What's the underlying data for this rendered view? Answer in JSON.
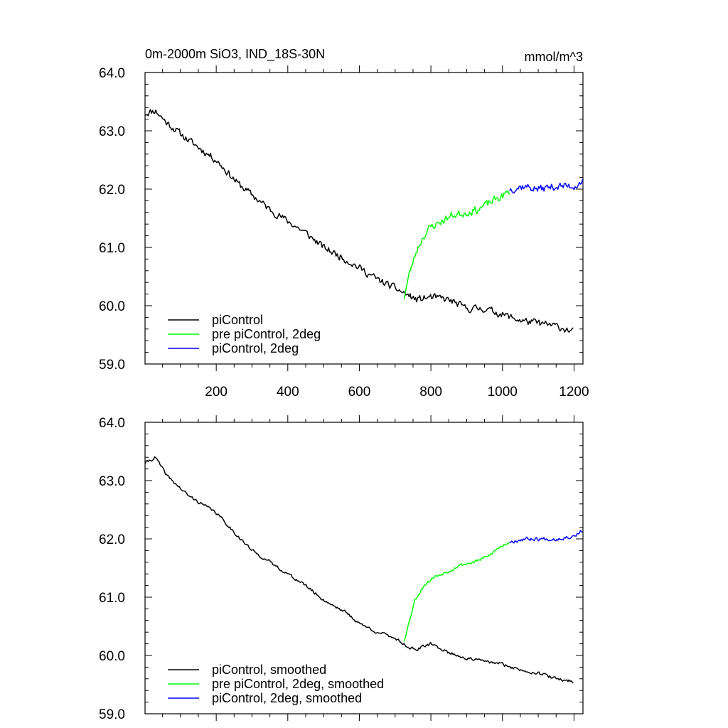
{
  "title_left": "0m-2000m SiO3, IND_18S-30N",
  "title_right": "mmol/m^3",
  "chart_data": [
    {
      "type": "line",
      "title": "0m-2000m SiO3, IND_18S-30N",
      "units": "mmol/m^3",
      "xlim": [
        1,
        1225
      ],
      "ylim": [
        59.0,
        64.0
      ],
      "x_ticks": [
        200,
        400,
        600,
        800,
        1000,
        1200
      ],
      "x_tick_labels": [
        "200",
        "400",
        "600",
        "800",
        "1000",
        "1200"
      ],
      "y_ticks": [
        59.0,
        60.0,
        61.0,
        62.0,
        63.0,
        64.0
      ],
      "y_tick_labels": [
        "59.0",
        "60.0",
        "61.0",
        "62.0",
        "63.0",
        "64.0"
      ],
      "grid": false,
      "legend_position": "bottom-left",
      "series": [
        {
          "name": "piControl",
          "color": "#000000",
          "noise": 0.09,
          "seed": 11,
          "points": [
            [
              1,
              63.3
            ],
            [
              30,
              63.35
            ],
            [
              60,
              63.15
            ],
            [
              120,
              62.85
            ],
            [
              200,
              62.5
            ],
            [
              260,
              62.1
            ],
            [
              300,
              61.9
            ],
            [
              350,
              61.65
            ],
            [
              400,
              61.45
            ],
            [
              450,
              61.25
            ],
            [
              500,
              61.0
            ],
            [
              560,
              60.8
            ],
            [
              600,
              60.65
            ],
            [
              650,
              60.45
            ],
            [
              700,
              60.3
            ],
            [
              730,
              60.2
            ],
            [
              760,
              60.1
            ],
            [
              800,
              60.15
            ],
            [
              850,
              60.1
            ],
            [
              900,
              59.95
            ],
            [
              950,
              59.95
            ],
            [
              1000,
              59.85
            ],
            [
              1050,
              59.75
            ],
            [
              1100,
              59.7
            ],
            [
              1150,
              59.65
            ],
            [
              1200,
              59.55
            ]
          ]
        },
        {
          "name": "pre piControl, 2deg",
          "color": "#00ff00",
          "noise": 0.1,
          "seed": 23,
          "points": [
            [
              725,
              60.15
            ],
            [
              740,
              60.55
            ],
            [
              760,
              60.95
            ],
            [
              780,
              61.2
            ],
            [
              800,
              61.35
            ],
            [
              830,
              61.45
            ],
            [
              860,
              61.55
            ],
            [
              900,
              61.6
            ],
            [
              930,
              61.65
            ],
            [
              960,
              61.75
            ],
            [
              990,
              61.85
            ],
            [
              1020,
              61.95
            ]
          ]
        },
        {
          "name": "piControl, 2deg",
          "color": "#0000ff",
          "noise": 0.1,
          "seed": 37,
          "points": [
            [
              1020,
              62.0
            ],
            [
              1060,
              62.05
            ],
            [
              1100,
              62.0
            ],
            [
              1150,
              62.05
            ],
            [
              1200,
              62.05
            ],
            [
              1225,
              62.15
            ]
          ]
        }
      ]
    },
    {
      "type": "line",
      "xlim": [
        1,
        1225
      ],
      "ylim": [
        59.0,
        64.0
      ],
      "x_ticks": [
        200,
        400,
        600,
        800,
        1000,
        1200
      ],
      "x_tick_labels": [],
      "y_ticks": [
        59.0,
        60.0,
        61.0,
        62.0,
        63.0,
        64.0
      ],
      "y_tick_labels": [
        "59.0",
        "60.0",
        "61.0",
        "62.0",
        "63.0",
        "64.0"
      ],
      "grid": false,
      "legend_position": "bottom-left",
      "series": [
        {
          "name": "piControl, smoothed",
          "color": "#000000",
          "noise": 0.04,
          "seed": 41,
          "points": [
            [
              1,
              63.3
            ],
            [
              30,
              63.4
            ],
            [
              60,
              63.1
            ],
            [
              120,
              62.75
            ],
            [
              200,
              62.45
            ],
            [
              260,
              62.05
            ],
            [
              300,
              61.8
            ],
            [
              350,
              61.6
            ],
            [
              400,
              61.4
            ],
            [
              450,
              61.2
            ],
            [
              500,
              60.95
            ],
            [
              560,
              60.75
            ],
            [
              600,
              60.55
            ],
            [
              650,
              60.4
            ],
            [
              700,
              60.3
            ],
            [
              735,
              60.15
            ],
            [
              760,
              60.1
            ],
            [
              800,
              60.2
            ],
            [
              850,
              60.05
            ],
            [
              900,
              59.95
            ],
            [
              950,
              59.9
            ],
            [
              1000,
              59.85
            ],
            [
              1050,
              59.75
            ],
            [
              1100,
              59.7
            ],
            [
              1150,
              59.6
            ],
            [
              1200,
              59.55
            ]
          ]
        },
        {
          "name": "pre piControl, 2deg, smoothed",
          "color": "#00ff00",
          "noise": 0.04,
          "seed": 53,
          "points": [
            [
              725,
              60.25
            ],
            [
              740,
              60.6
            ],
            [
              755,
              60.95
            ],
            [
              780,
              61.2
            ],
            [
              810,
              61.35
            ],
            [
              850,
              61.45
            ],
            [
              880,
              61.55
            ],
            [
              920,
              61.6
            ],
            [
              960,
              61.7
            ],
            [
              990,
              61.85
            ],
            [
              1020,
              61.95
            ]
          ]
        },
        {
          "name": "piControl, 2deg, smoothed",
          "color": "#0000ff",
          "noise": 0.05,
          "seed": 67,
          "points": [
            [
              1020,
              61.95
            ],
            [
              1060,
              62.0
            ],
            [
              1100,
              62.0
            ],
            [
              1150,
              62.0
            ],
            [
              1200,
              62.05
            ],
            [
              1225,
              62.15
            ]
          ]
        }
      ]
    }
  ]
}
